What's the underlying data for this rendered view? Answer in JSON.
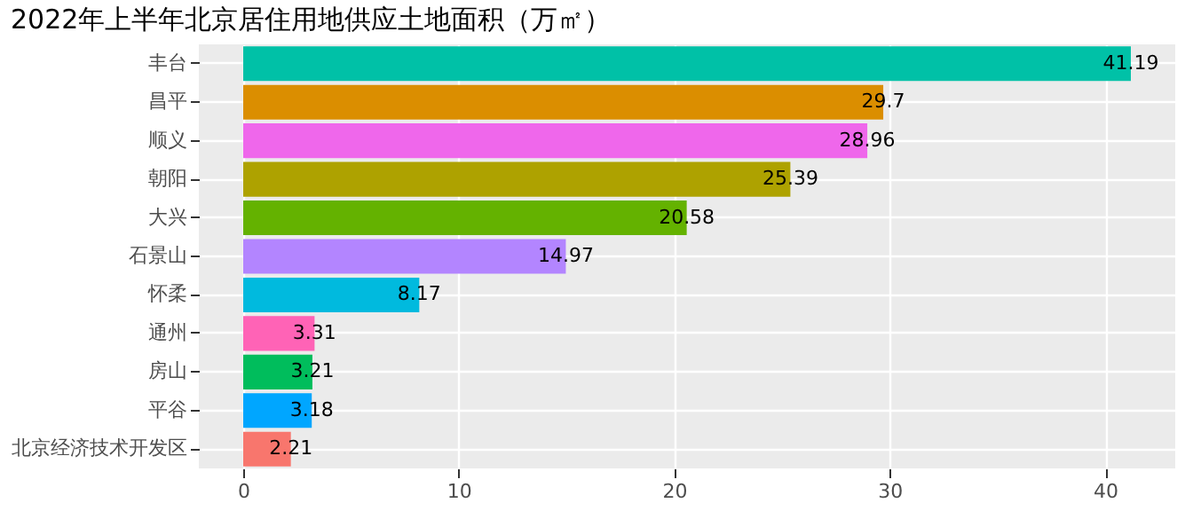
{
  "chart_data": {
    "type": "bar",
    "orientation": "horizontal",
    "title": "2022年上半年北京居住用地供应土地面积（万㎡）",
    "categories": [
      "丰台",
      "昌平",
      "顺义",
      "朝阳",
      "大兴",
      "石景山",
      "怀柔",
      "通州",
      "房山",
      "平谷",
      "北京经济技术开发区"
    ],
    "values": [
      41.19,
      29.7,
      28.96,
      25.39,
      20.58,
      14.97,
      8.17,
      3.31,
      3.21,
      3.18,
      2.21
    ],
    "colors": [
      "#00C1A7",
      "#DB8E00",
      "#EF67EB",
      "#AEA200",
      "#64B200",
      "#B385FF",
      "#00BADE",
      "#FF63B6",
      "#00BD5C",
      "#00A6FF",
      "#F8766D"
    ],
    "xlim": [
      -2.06,
      43.25
    ],
    "xticks": [
      0,
      10,
      20,
      30,
      40
    ],
    "grid": true,
    "data_labels": true
  }
}
